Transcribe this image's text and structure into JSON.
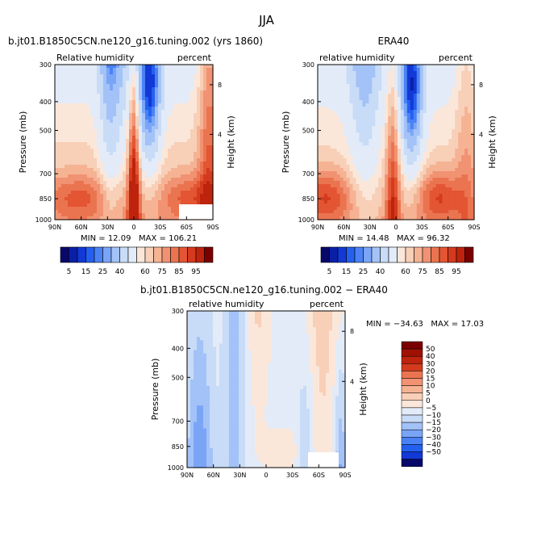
{
  "figure_title": "JJA",
  "colors": {
    "neg": [
      "#08086b",
      "#0b1fa6",
      "#1238d6",
      "#2460f0",
      "#4a82f5",
      "#7aa5f7",
      "#a3c2f7",
      "#c8dbf7",
      "#e2ebf7"
    ],
    "pos": [
      "#fbe7da",
      "#f8cfb7",
      "#f5b394",
      "#f19272",
      "#eb7450",
      "#e35533",
      "#d43a1d",
      "#be230d",
      "#a01103",
      "#7a0000"
    ],
    "white": "#ffffff"
  },
  "chart_data": [
    {
      "id": "model",
      "type": "heatmap",
      "title": "b.jt01.B1850C5CN.ne120_g16.tuning.002 (yrs 1860)",
      "left_string": "Relative humidity",
      "right_string": "percent",
      "xlabel": "",
      "ylabel": "Pressure (mb)",
      "y2label": "Height (km)",
      "x_ticks": [
        "90N",
        "60N",
        "30N",
        "0",
        "30S",
        "60S",
        "90S"
      ],
      "y_ticks": [
        "300",
        "400",
        "500",
        "700",
        "850",
        "1000"
      ],
      "y2_ticks": [
        "8",
        "4"
      ],
      "min_label": "MIN =",
      "min_value": "12.09",
      "max_label": "MAX =",
      "max_value": "106.21",
      "colorbar_labels": [
        "5",
        "15",
        "25",
        "40",
        "60",
        "75",
        "85",
        "95"
      ]
    },
    {
      "id": "era40",
      "type": "heatmap",
      "title": "ERA40",
      "left_string": "relative humidity",
      "right_string": "percent",
      "xlabel": "",
      "ylabel": "Pressure (mb)",
      "y2label": "Height (km)",
      "x_ticks": [
        "90N",
        "60N",
        "30N",
        "0",
        "30S",
        "60S",
        "90S"
      ],
      "y_ticks": [
        "300",
        "400",
        "500",
        "700",
        "850",
        "1000"
      ],
      "y2_ticks": [
        "8",
        "4"
      ],
      "min_label": "MIN =",
      "min_value": "14.48",
      "max_label": "MAX =",
      "max_value": "96.32",
      "colorbar_labels": [
        "5",
        "15",
        "25",
        "40",
        "60",
        "75",
        "85",
        "95"
      ]
    },
    {
      "id": "diff",
      "type": "heatmap",
      "title": "b.jt01.B1850C5CN.ne120_g16.tuning.002 − ERA40",
      "left_string": "relative humidity",
      "right_string": "percent",
      "xlabel": "",
      "ylabel": "Pressure (mb)",
      "y2label": "Height (km)",
      "x_ticks": [
        "90N",
        "60N",
        "30N",
        "0",
        "30S",
        "60S",
        "90S"
      ],
      "y_ticks": [
        "300",
        "400",
        "500",
        "700",
        "850",
        "1000"
      ],
      "y2_ticks": [
        "8",
        "4"
      ],
      "min_label": "MIN =",
      "min_value": "−34.63",
      "max_label": "MAX =",
      "max_value": "17.03",
      "colorbar_labels": [
        "50",
        "40",
        "30",
        "20",
        "15",
        "10",
        "5",
        "0",
        "−5",
        "−10",
        "−15",
        "−20",
        "−30",
        "−40",
        "−50"
      ]
    }
  ]
}
